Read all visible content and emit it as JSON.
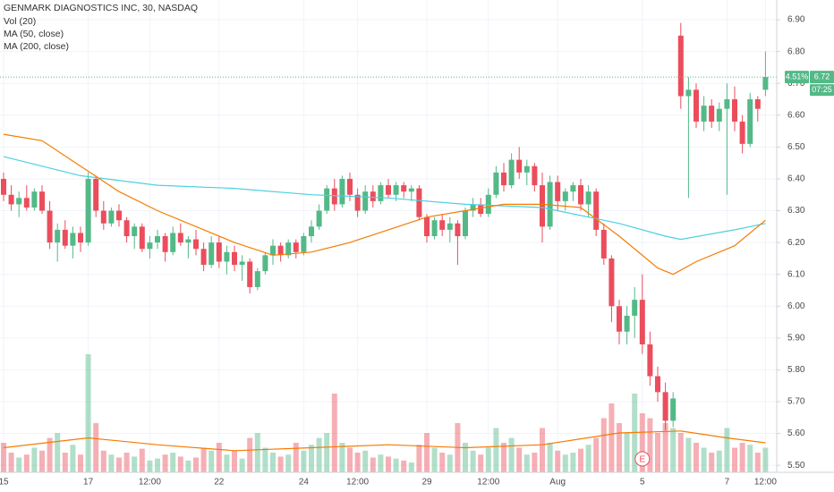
{
  "chart_data": {
    "type": "candlestick",
    "title": "GENMARK DIAGNOSTICS INC, 30, NASDAQ",
    "indicators": [
      "Vol (20)",
      "MA (50, close)",
      "MA (200, close)"
    ],
    "up_color": "#53b987",
    "down_color": "#eb4d5c",
    "ylim": [
      5.478,
      6.962
    ],
    "yticks": [
      {
        "value": 5.5,
        "label": "5.50"
      },
      {
        "value": 5.6,
        "label": "5.60"
      },
      {
        "value": 5.7,
        "label": "5.70"
      },
      {
        "value": 5.8,
        "label": "5.80"
      },
      {
        "value": 5.9,
        "label": "5.90"
      },
      {
        "value": 6.0,
        "label": "6.00"
      },
      {
        "value": 6.1,
        "label": "6.10"
      },
      {
        "value": 6.2,
        "label": "6.20"
      },
      {
        "value": 6.3,
        "label": "6.30"
      },
      {
        "value": 6.4,
        "label": "6.40"
      },
      {
        "value": 6.5,
        "label": "6.50"
      },
      {
        "value": 6.6,
        "label": "6.60"
      },
      {
        "value": 6.7,
        "label": "6.70"
      },
      {
        "value": 6.8,
        "label": "6.80"
      },
      {
        "value": 6.9,
        "label": "6.90"
      }
    ],
    "volume_lim": [
      0,
      480
    ],
    "grid": true,
    "categories": [
      "15",
      null,
      null,
      null,
      null,
      null,
      null,
      null,
      null,
      null,
      null,
      "17",
      null,
      null,
      null,
      null,
      null,
      null,
      null,
      "12:00",
      null,
      null,
      null,
      null,
      null,
      null,
      null,
      null,
      "22",
      null,
      null,
      null,
      null,
      null,
      null,
      null,
      null,
      null,
      null,
      "24",
      null,
      null,
      null,
      null,
      null,
      null,
      "12:00",
      null,
      null,
      null,
      null,
      null,
      null,
      null,
      null,
      "29",
      null,
      null,
      null,
      null,
      null,
      null,
      null,
      "12:00",
      null,
      null,
      null,
      null,
      null,
      null,
      null,
      null,
      "Aug",
      null,
      null,
      null,
      null,
      null,
      null,
      null,
      null,
      null,
      null,
      "5",
      null,
      null,
      null,
      null,
      null,
      null,
      null,
      null,
      null,
      null,
      "7",
      null,
      null,
      null,
      null,
      "12:00"
    ],
    "candles": [
      {
        "o": 6.4,
        "h": 6.42,
        "l": 6.33,
        "c": 6.35,
        "v": 30
      },
      {
        "o": 6.35,
        "h": 6.38,
        "l": 6.3,
        "c": 6.32,
        "v": 20
      },
      {
        "o": 6.32,
        "h": 6.36,
        "l": 6.28,
        "c": 6.34,
        "v": 15
      },
      {
        "o": 6.34,
        "h": 6.38,
        "l": 6.3,
        "c": 6.31,
        "v": 18
      },
      {
        "o": 6.31,
        "h": 6.37,
        "l": 6.3,
        "c": 6.36,
        "v": 25
      },
      {
        "o": 6.36,
        "h": 6.38,
        "l": 6.29,
        "c": 6.3,
        "v": 22
      },
      {
        "o": 6.3,
        "h": 6.33,
        "l": 6.18,
        "c": 6.2,
        "v": 35
      },
      {
        "o": 6.2,
        "h": 6.26,
        "l": 6.14,
        "c": 6.24,
        "v": 40
      },
      {
        "o": 6.24,
        "h": 6.27,
        "l": 6.18,
        "c": 6.19,
        "v": 20
      },
      {
        "o": 6.19,
        "h": 6.25,
        "l": 6.15,
        "c": 6.23,
        "v": 28
      },
      {
        "o": 6.23,
        "h": 6.25,
        "l": 6.17,
        "c": 6.2,
        "v": 18
      },
      {
        "o": 6.2,
        "h": 6.42,
        "l": 6.19,
        "c": 6.4,
        "v": 120
      },
      {
        "o": 6.4,
        "h": 6.41,
        "l": 6.28,
        "c": 6.3,
        "v": 50
      },
      {
        "o": 6.3,
        "h": 6.33,
        "l": 6.24,
        "c": 6.26,
        "v": 22
      },
      {
        "o": 6.26,
        "h": 6.31,
        "l": 6.25,
        "c": 6.3,
        "v": 18
      },
      {
        "o": 6.3,
        "h": 6.32,
        "l": 6.25,
        "c": 6.27,
        "v": 15
      },
      {
        "o": 6.27,
        "h": 6.28,
        "l": 6.2,
        "c": 6.22,
        "v": 20
      },
      {
        "o": 6.22,
        "h": 6.26,
        "l": 6.18,
        "c": 6.25,
        "v": 16
      },
      {
        "o": 6.25,
        "h": 6.26,
        "l": 6.17,
        "c": 6.18,
        "v": 24
      },
      {
        "o": 6.18,
        "h": 6.22,
        "l": 6.15,
        "c": 6.2,
        "v": 12
      },
      {
        "o": 6.2,
        "h": 6.24,
        "l": 6.18,
        "c": 6.22,
        "v": 14
      },
      {
        "o": 6.22,
        "h": 6.23,
        "l": 6.14,
        "c": 6.17,
        "v": 18
      },
      {
        "o": 6.17,
        "h": 6.25,
        "l": 6.16,
        "c": 6.23,
        "v": 20
      },
      {
        "o": 6.23,
        "h": 6.26,
        "l": 6.19,
        "c": 6.2,
        "v": 16
      },
      {
        "o": 6.2,
        "h": 6.22,
        "l": 6.15,
        "c": 6.21,
        "v": 12
      },
      {
        "o": 6.21,
        "h": 6.24,
        "l": 6.16,
        "c": 6.18,
        "v": 15
      },
      {
        "o": 6.18,
        "h": 6.2,
        "l": 6.11,
        "c": 6.13,
        "v": 25
      },
      {
        "o": 6.13,
        "h": 6.22,
        "l": 6.12,
        "c": 6.2,
        "v": 22
      },
      {
        "o": 6.2,
        "h": 6.22,
        "l": 6.12,
        "c": 6.14,
        "v": 30
      },
      {
        "o": 6.14,
        "h": 6.19,
        "l": 6.1,
        "c": 6.17,
        "v": 18
      },
      {
        "o": 6.17,
        "h": 6.19,
        "l": 6.11,
        "c": 6.13,
        "v": 22
      },
      {
        "o": 6.13,
        "h": 6.16,
        "l": 6.08,
        "c": 6.14,
        "v": 14
      },
      {
        "o": 6.14,
        "h": 6.15,
        "l": 6.04,
        "c": 6.06,
        "v": 35
      },
      {
        "o": 6.06,
        "h": 6.12,
        "l": 6.05,
        "c": 6.11,
        "v": 40
      },
      {
        "o": 6.11,
        "h": 6.17,
        "l": 6.1,
        "c": 6.16,
        "v": 25
      },
      {
        "o": 6.16,
        "h": 6.21,
        "l": 6.13,
        "c": 6.19,
        "v": 20
      },
      {
        "o": 6.19,
        "h": 6.2,
        "l": 6.14,
        "c": 6.16,
        "v": 16
      },
      {
        "o": 6.16,
        "h": 6.21,
        "l": 6.15,
        "c": 6.2,
        "v": 18
      },
      {
        "o": 6.2,
        "h": 6.21,
        "l": 6.15,
        "c": 6.17,
        "v": 30
      },
      {
        "o": 6.17,
        "h": 6.23,
        "l": 6.16,
        "c": 6.22,
        "v": 22
      },
      {
        "o": 6.22,
        "h": 6.27,
        "l": 6.2,
        "c": 6.25,
        "v": 28
      },
      {
        "o": 6.25,
        "h": 6.32,
        "l": 6.24,
        "c": 6.3,
        "v": 35
      },
      {
        "o": 6.3,
        "h": 6.38,
        "l": 6.29,
        "c": 6.37,
        "v": 40
      },
      {
        "o": 6.37,
        "h": 6.4,
        "l": 6.3,
        "c": 6.32,
        "v": 80
      },
      {
        "o": 6.32,
        "h": 6.41,
        "l": 6.31,
        "c": 6.4,
        "v": 30
      },
      {
        "o": 6.4,
        "h": 6.42,
        "l": 6.33,
        "c": 6.35,
        "v": 25
      },
      {
        "o": 6.35,
        "h": 6.37,
        "l": 6.28,
        "c": 6.3,
        "v": 20
      },
      {
        "o": 6.3,
        "h": 6.38,
        "l": 6.29,
        "c": 6.36,
        "v": 22
      },
      {
        "o": 6.36,
        "h": 6.38,
        "l": 6.31,
        "c": 6.33,
        "v": 15
      },
      {
        "o": 6.33,
        "h": 6.39,
        "l": 6.32,
        "c": 6.38,
        "v": 18
      },
      {
        "o": 6.38,
        "h": 6.4,
        "l": 6.34,
        "c": 6.35,
        "v": 16
      },
      {
        "o": 6.35,
        "h": 6.39,
        "l": 6.33,
        "c": 6.38,
        "v": 14
      },
      {
        "o": 6.38,
        "h": 6.39,
        "l": 6.34,
        "c": 6.36,
        "v": 12
      },
      {
        "o": 6.36,
        "h": 6.38,
        "l": 6.33,
        "c": 6.37,
        "v": 10
      },
      {
        "o": 6.37,
        "h": 6.38,
        "l": 6.27,
        "c": 6.28,
        "v": 28
      },
      {
        "o": 6.28,
        "h": 6.29,
        "l": 6.2,
        "c": 6.22,
        "v": 40
      },
      {
        "o": 6.22,
        "h": 6.28,
        "l": 6.21,
        "c": 6.27,
        "v": 25
      },
      {
        "o": 6.27,
        "h": 6.29,
        "l": 6.22,
        "c": 6.24,
        "v": 20
      },
      {
        "o": 6.24,
        "h": 6.28,
        "l": 6.2,
        "c": 6.26,
        "v": 18
      },
      {
        "o": 6.26,
        "h": 6.27,
        "l": 6.13,
        "c": 6.22,
        "v": 50
      },
      {
        "o": 6.22,
        "h": 6.31,
        "l": 6.21,
        "c": 6.3,
        "v": 30
      },
      {
        "o": 6.3,
        "h": 6.34,
        "l": 6.28,
        "c": 6.32,
        "v": 22
      },
      {
        "o": 6.32,
        "h": 6.34,
        "l": 6.28,
        "c": 6.29,
        "v": 18
      },
      {
        "o": 6.29,
        "h": 6.37,
        "l": 6.28,
        "c": 6.35,
        "v": 25
      },
      {
        "o": 6.35,
        "h": 6.44,
        "l": 6.34,
        "c": 6.42,
        "v": 45
      },
      {
        "o": 6.42,
        "h": 6.45,
        "l": 6.36,
        "c": 6.38,
        "v": 30
      },
      {
        "o": 6.38,
        "h": 6.48,
        "l": 6.37,
        "c": 6.46,
        "v": 35
      },
      {
        "o": 6.46,
        "h": 6.5,
        "l": 6.4,
        "c": 6.42,
        "v": 25
      },
      {
        "o": 6.42,
        "h": 6.46,
        "l": 6.38,
        "c": 6.44,
        "v": 18
      },
      {
        "o": 6.44,
        "h": 6.45,
        "l": 6.36,
        "c": 6.38,
        "v": 20
      },
      {
        "o": 6.38,
        "h": 6.42,
        "l": 6.2,
        "c": 6.25,
        "v": 45
      },
      {
        "o": 6.25,
        "h": 6.41,
        "l": 6.24,
        "c": 6.39,
        "v": 30
      },
      {
        "o": 6.39,
        "h": 6.41,
        "l": 6.3,
        "c": 6.33,
        "v": 22
      },
      {
        "o": 6.33,
        "h": 6.37,
        "l": 6.3,
        "c": 6.36,
        "v": 18
      },
      {
        "o": 6.36,
        "h": 6.39,
        "l": 6.33,
        "c": 6.38,
        "v": 20
      },
      {
        "o": 6.38,
        "h": 6.4,
        "l": 6.3,
        "c": 6.32,
        "v": 24
      },
      {
        "o": 6.32,
        "h": 6.38,
        "l": 6.28,
        "c": 6.36,
        "v": 28
      },
      {
        "o": 6.36,
        "h": 6.37,
        "l": 6.22,
        "c": 6.24,
        "v": 35
      },
      {
        "o": 6.24,
        "h": 6.26,
        "l": 6.13,
        "c": 6.15,
        "v": 55
      },
      {
        "o": 6.15,
        "h": 6.16,
        "l": 5.95,
        "c": 6.0,
        "v": 70
      },
      {
        "o": 6.0,
        "h": 6.02,
        "l": 5.88,
        "c": 5.92,
        "v": 50
      },
      {
        "o": 5.92,
        "h": 6.0,
        "l": 5.88,
        "c": 5.97,
        "v": 40
      },
      {
        "o": 5.97,
        "h": 6.06,
        "l": 5.9,
        "c": 6.02,
        "v": 80
      },
      {
        "o": 6.02,
        "h": 6.1,
        "l": 5.85,
        "c": 5.88,
        "v": 60
      },
      {
        "o": 5.88,
        "h": 5.92,
        "l": 5.75,
        "c": 5.78,
        "v": 55
      },
      {
        "o": 5.78,
        "h": 5.81,
        "l": 5.7,
        "c": 5.73,
        "v": 40
      },
      {
        "o": 5.73,
        "h": 5.76,
        "l": 5.61,
        "c": 5.64,
        "v": 50
      },
      {
        "o": 5.64,
        "h": 5.73,
        "l": 5.62,
        "c": 5.71,
        "v": 45
      },
      {
        "o": 6.85,
        "h": 6.89,
        "l": 6.62,
        "c": 6.66,
        "v": 40
      },
      {
        "o": 6.66,
        "h": 6.72,
        "l": 6.34,
        "c": 6.68,
        "v": 35
      },
      {
        "o": 6.68,
        "h": 6.7,
        "l": 6.56,
        "c": 6.58,
        "v": 30
      },
      {
        "o": 6.58,
        "h": 6.66,
        "l": 6.55,
        "c": 6.63,
        "v": 25
      },
      {
        "o": 6.63,
        "h": 6.65,
        "l": 6.56,
        "c": 6.58,
        "v": 20
      },
      {
        "o": 6.58,
        "h": 6.64,
        "l": 6.55,
        "c": 6.62,
        "v": 22
      },
      {
        "o": 6.62,
        "h": 6.7,
        "l": 6.35,
        "c": 6.65,
        "v": 45
      },
      {
        "o": 6.65,
        "h": 6.69,
        "l": 6.55,
        "c": 6.58,
        "v": 25
      },
      {
        "o": 6.58,
        "h": 6.6,
        "l": 6.48,
        "c": 6.51,
        "v": 30
      },
      {
        "o": 6.51,
        "h": 6.67,
        "l": 6.5,
        "c": 6.65,
        "v": 28
      },
      {
        "o": 6.65,
        "h": 6.66,
        "l": 6.58,
        "c": 6.62,
        "v": 20
      },
      {
        "o": 6.68,
        "h": 6.8,
        "l": 6.66,
        "c": 6.72,
        "v": 25
      }
    ],
    "lines": [
      {
        "name": "MA (200, close)",
        "color": "#4dd0e1",
        "x": [
          0,
          10,
          20,
          30,
          40,
          50,
          60,
          70,
          80,
          86,
          88,
          95,
          99
        ],
        "values": [
          6.47,
          6.41,
          6.38,
          6.37,
          6.35,
          6.34,
          6.32,
          6.31,
          6.26,
          6.22,
          6.21,
          6.24,
          6.26
        ]
      },
      {
        "name": "MA (50, close)",
        "color": "#f57c00",
        "x": [
          0,
          5,
          10,
          15,
          20,
          25,
          30,
          35,
          40,
          45,
          50,
          55,
          60,
          65,
          70,
          75,
          80,
          85,
          87,
          90,
          95,
          99
        ],
        "values": [
          6.54,
          6.52,
          6.44,
          6.36,
          6.3,
          6.25,
          6.2,
          6.16,
          6.17,
          6.2,
          6.24,
          6.28,
          6.3,
          6.32,
          6.32,
          6.31,
          6.22,
          6.12,
          6.1,
          6.14,
          6.19,
          6.27
        ]
      }
    ],
    "volume_ma": {
      "name": "Vol (20)",
      "color": "#f57c00",
      "x": [
        0,
        11,
        20,
        30,
        40,
        50,
        60,
        70,
        80,
        88,
        94,
        99
      ],
      "values": [
        25,
        35,
        28,
        22,
        25,
        28,
        25,
        28,
        40,
        42,
        35,
        30
      ]
    },
    "last_price": {
      "value": 6.72,
      "label": "6.72"
    },
    "change_label": "4.51%",
    "countdown": "07:25",
    "earnings": {
      "label": "E",
      "category": 83
    }
  }
}
